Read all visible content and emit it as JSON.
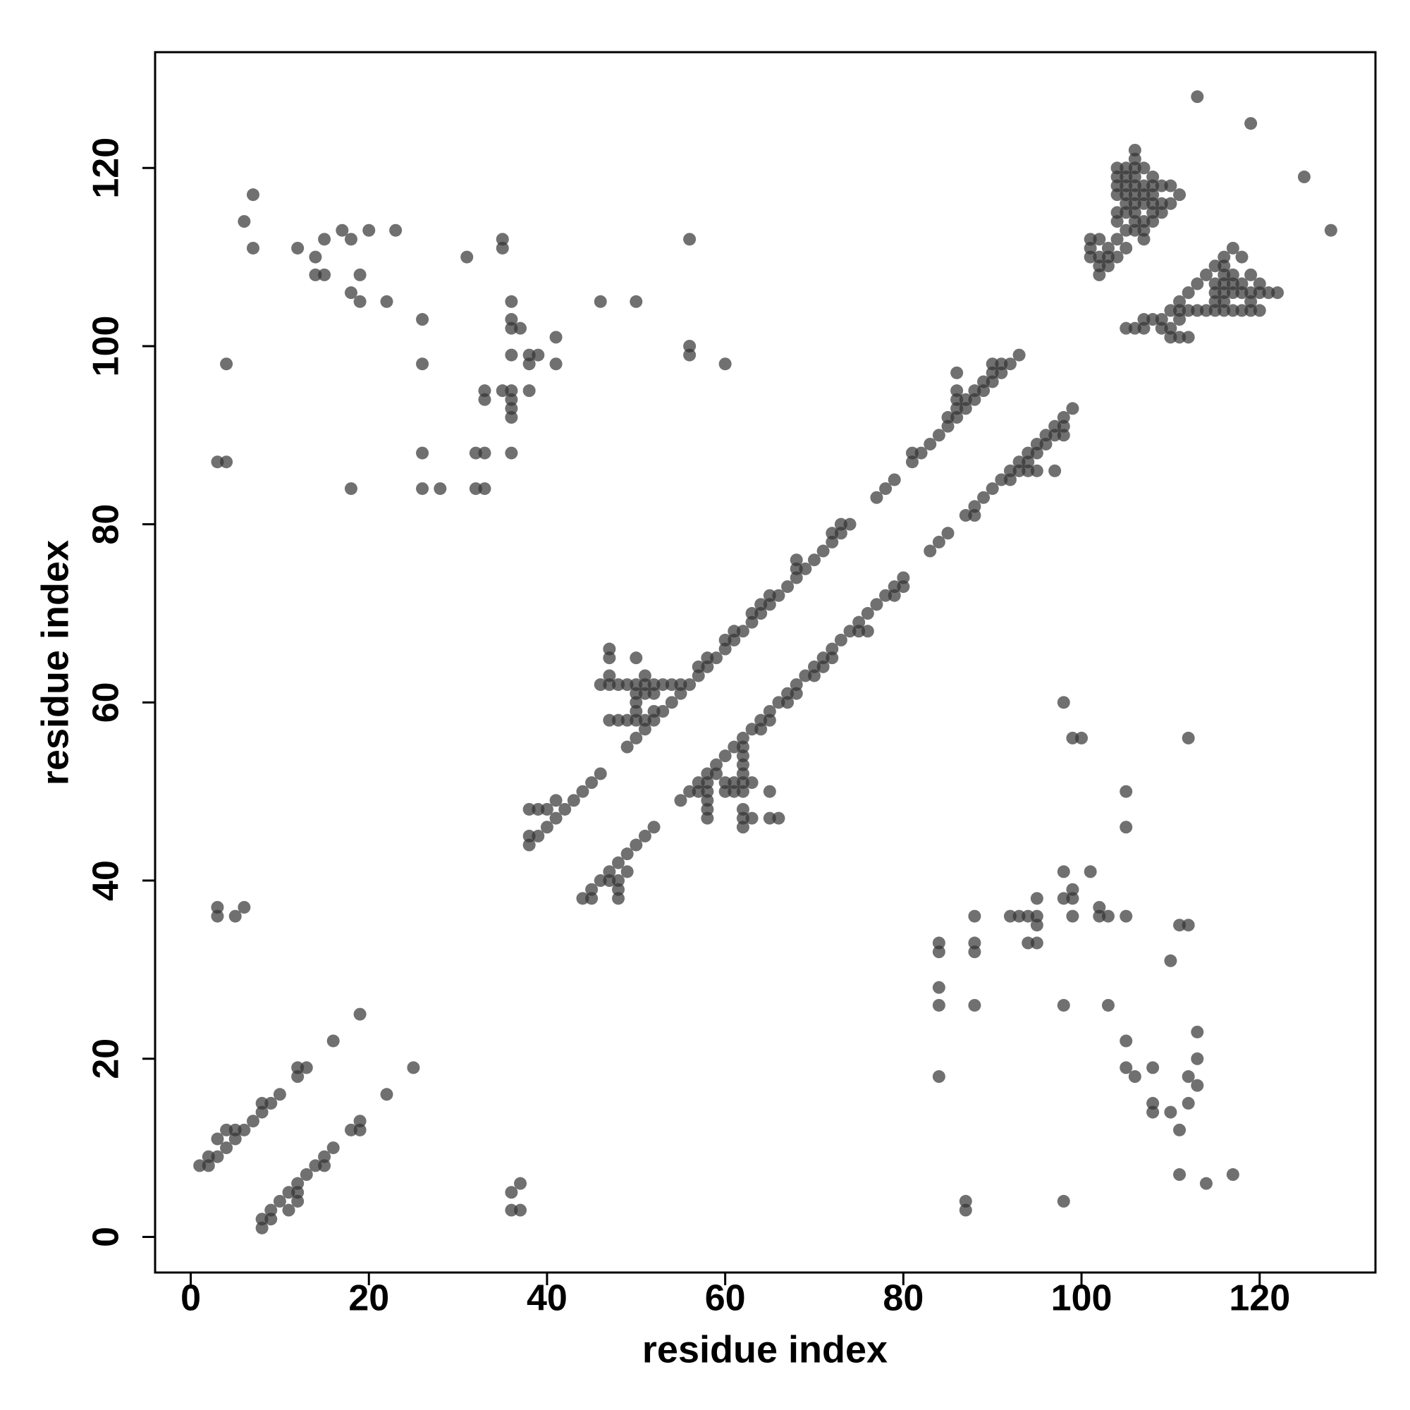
{
  "chart_data": {
    "type": "scatter",
    "xlabel": "residue index",
    "ylabel": "residue index",
    "xlim": [
      -4,
      133
    ],
    "ylim": [
      -4,
      133
    ],
    "xticks": [
      0,
      20,
      40,
      60,
      80,
      100,
      120
    ],
    "yticks": [
      0,
      20,
      40,
      60,
      80,
      100,
      120
    ],
    "color": "#333333",
    "opacity": 0.7,
    "x": [
      1,
      2,
      2,
      3,
      3,
      4,
      4,
      5,
      5,
      6,
      7,
      8,
      8,
      9,
      10,
      12,
      12,
      13,
      16,
      19,
      22,
      25,
      8,
      8,
      9,
      9,
      10,
      11,
      11,
      12,
      12,
      12,
      13,
      14,
      15,
      15,
      16,
      18,
      19,
      19,
      3,
      3,
      5,
      6,
      36,
      36,
      37,
      37,
      4,
      3,
      4,
      6,
      7,
      7,
      12,
      14,
      14,
      15,
      15,
      17,
      18,
      18,
      19,
      19,
      20,
      22,
      23,
      18,
      26,
      26,
      26,
      26,
      28,
      31,
      32,
      32,
      33,
      33,
      33,
      33,
      35,
      35,
      35,
      36,
      36,
      36,
      37,
      36,
      36,
      36,
      36,
      36,
      36,
      38,
      38,
      39,
      38,
      41,
      41,
      46,
      50,
      56,
      56,
      56,
      60,
      38,
      39,
      40,
      40,
      41,
      41,
      42,
      43,
      44,
      45,
      46,
      38,
      38,
      39,
      47,
      47,
      47,
      47,
      46,
      48,
      49,
      50,
      50,
      51,
      51,
      52,
      53,
      54,
      55,
      56,
      50,
      50,
      50,
      50,
      51,
      52,
      51,
      50,
      49,
      47,
      48,
      49,
      51,
      52,
      53,
      52,
      54,
      55,
      57,
      57,
      58,
      58,
      59,
      60,
      60,
      61,
      61,
      62,
      63,
      63,
      64,
      64,
      65,
      65,
      66,
      67,
      68,
      68,
      68,
      69,
      70,
      71,
      72,
      72,
      73,
      73,
      74,
      77,
      78,
      79,
      81,
      81,
      82,
      83,
      84,
      85,
      85,
      86,
      86,
      86,
      86,
      86,
      87,
      87,
      88,
      88,
      89,
      89,
      90,
      90,
      90,
      91,
      91,
      92,
      93,
      44,
      45,
      45,
      46,
      47,
      47,
      48,
      48,
      48,
      48,
      49,
      49,
      50,
      51,
      52,
      55,
      56,
      57,
      57,
      58,
      58,
      58,
      58,
      58,
      58,
      59,
      59,
      60,
      60,
      60,
      61,
      61,
      61,
      62,
      62,
      62,
      62,
      62,
      62,
      62,
      62,
      62,
      62,
      63,
      63,
      63,
      64,
      64,
      65,
      65,
      65,
      65,
      66,
      66,
      67,
      67,
      68,
      68,
      69,
      70,
      70,
      71,
      71,
      72,
      72,
      73,
      74,
      75,
      75,
      76,
      76,
      77,
      78,
      79,
      79,
      80,
      80,
      83,
      84,
      85,
      87,
      88,
      88,
      89,
      90,
      91,
      92,
      92,
      93,
      93,
      94,
      94,
      94,
      95,
      95,
      95,
      96,
      96,
      97,
      97,
      97,
      98,
      98,
      98,
      99,
      101,
      101,
      101,
      102,
      102,
      102,
      102,
      103,
      103,
      103,
      104,
      104,
      104,
      104,
      104,
      104,
      104,
      104,
      105,
      105,
      105,
      105,
      105,
      105,
      105,
      105,
      106,
      106,
      106,
      106,
      106,
      106,
      106,
      106,
      106,
      106,
      107,
      107,
      107,
      107,
      107,
      107,
      107,
      108,
      108,
      108,
      108,
      108,
      108,
      109,
      109,
      109,
      110,
      110,
      111,
      105,
      106,
      107,
      107,
      108,
      109,
      109,
      110,
      110,
      110,
      111,
      111,
      111,
      111,
      112,
      112,
      112,
      113,
      113,
      114,
      114,
      115,
      115,
      115,
      115,
      115,
      116,
      116,
      116,
      116,
      116,
      116,
      116,
      117,
      117,
      117,
      117,
      117,
      118,
      118,
      118,
      118,
      119,
      119,
      119,
      119,
      120,
      120,
      120,
      121,
      122,
      113,
      119,
      125,
      128,
      84,
      84,
      84,
      84,
      84,
      87,
      87,
      88,
      88,
      88,
      88,
      92,
      93,
      94,
      94,
      95,
      95,
      95,
      95,
      98,
      98,
      98,
      98,
      98,
      99,
      99,
      99,
      99,
      100,
      101,
      102,
      102,
      103,
      103,
      105,
      105,
      105,
      105,
      105,
      106,
      108,
      108,
      108,
      110,
      110,
      111,
      111,
      111,
      112,
      112,
      112,
      112,
      113,
      113,
      113,
      114,
      117
    ],
    "values": [
      8,
      8,
      9,
      9,
      11,
      10,
      12,
      11,
      12,
      12,
      13,
      14,
      15,
      15,
      16,
      18,
      19,
      19,
      22,
      25,
      16,
      19,
      1,
      2,
      2,
      3,
      4,
      3,
      5,
      4,
      5,
      6,
      7,
      8,
      8,
      9,
      10,
      12,
      12,
      13,
      36,
      37,
      36,
      37,
      3,
      5,
      3,
      6,
      98,
      87,
      87,
      114,
      117,
      111,
      111,
      110,
      108,
      108,
      112,
      113,
      112,
      106,
      108,
      105,
      113,
      105,
      113,
      84,
      103,
      98,
      88,
      84,
      84,
      110,
      88,
      84,
      88,
      84,
      95,
      94,
      112,
      111,
      95,
      105,
      103,
      102,
      102,
      99,
      95,
      94,
      93,
      92,
      88,
      99,
      98,
      99,
      95,
      101,
      98,
      105,
      105,
      112,
      100,
      99,
      98,
      48,
      48,
      48,
      46,
      47,
      49,
      48,
      49,
      50,
      51,
      52,
      45,
      44,
      45,
      62,
      65,
      66,
      63,
      62,
      62,
      62,
      62,
      65,
      63,
      62,
      62,
      62,
      62,
      62,
      62,
      61,
      60,
      59,
      58,
      58,
      58,
      57,
      56,
      55,
      58,
      58,
      58,
      61,
      61,
      59,
      59,
      60,
      61,
      63,
      64,
      64,
      65,
      65,
      66,
      67,
      67,
      68,
      68,
      69,
      70,
      70,
      71,
      71,
      72,
      72,
      73,
      74,
      75,
      76,
      75,
      76,
      77,
      78,
      79,
      79,
      80,
      80,
      83,
      84,
      85,
      87,
      88,
      88,
      89,
      90,
      91,
      92,
      92,
      93,
      94,
      95,
      97,
      93,
      94,
      94,
      95,
      95,
      96,
      96,
      97,
      98,
      97,
      98,
      98,
      99,
      38,
      38,
      39,
      40,
      40,
      41,
      40,
      39,
      38,
      42,
      41,
      43,
      44,
      45,
      46,
      49,
      50,
      50,
      51,
      51,
      52,
      50,
      49,
      48,
      47,
      52,
      53,
      50,
      51,
      54,
      50,
      51,
      55,
      50,
      51,
      52,
      53,
      54,
      55,
      56,
      48,
      47,
      46,
      47,
      51,
      57,
      57,
      58,
      58,
      59,
      50,
      47,
      47,
      60,
      60,
      61,
      61,
      62,
      63,
      63,
      64,
      64,
      65,
      65,
      66,
      67,
      68,
      68,
      69,
      68,
      70,
      71,
      72,
      72,
      73,
      73,
      74,
      77,
      78,
      79,
      81,
      81,
      82,
      83,
      84,
      85,
      85,
      86,
      86,
      87,
      86,
      87,
      88,
      86,
      88,
      89,
      89,
      90,
      90,
      91,
      86,
      90,
      91,
      92,
      93,
      112,
      111,
      110,
      112,
      110,
      109,
      108,
      111,
      110,
      109,
      110,
      112,
      114,
      117,
      118,
      119,
      120,
      115,
      116,
      117,
      118,
      119,
      120,
      111,
      113,
      115,
      115,
      116,
      117,
      118,
      119,
      120,
      121,
      122,
      114,
      113,
      113,
      114,
      116,
      117,
      118,
      120,
      112,
      114,
      115,
      116,
      117,
      118,
      119,
      116,
      115,
      118,
      116,
      118,
      117,
      102,
      102,
      102,
      103,
      103,
      103,
      102,
      102,
      101,
      104,
      104,
      103,
      101,
      105,
      101,
      104,
      106,
      104,
      107,
      104,
      108,
      104,
      105,
      106,
      107,
      109,
      104,
      105,
      106,
      107,
      108,
      109,
      110,
      104,
      106,
      107,
      108,
      111,
      104,
      106,
      107,
      110,
      104,
      105,
      106,
      108,
      104,
      106,
      107,
      106,
      106,
      128,
      125,
      119,
      113,
      33,
      32,
      28,
      26,
      18,
      4,
      3,
      36,
      33,
      32,
      26,
      36,
      36,
      36,
      33,
      38,
      36,
      35,
      33,
      60,
      41,
      38,
      26,
      4,
      56,
      39,
      38,
      36,
      56,
      41,
      37,
      36,
      36,
      26,
      50,
      46,
      36,
      22,
      19,
      18,
      19,
      15,
      14,
      31,
      14,
      35,
      12,
      7,
      56,
      35,
      18,
      15,
      23,
      20,
      17,
      6,
      7
    ]
  }
}
